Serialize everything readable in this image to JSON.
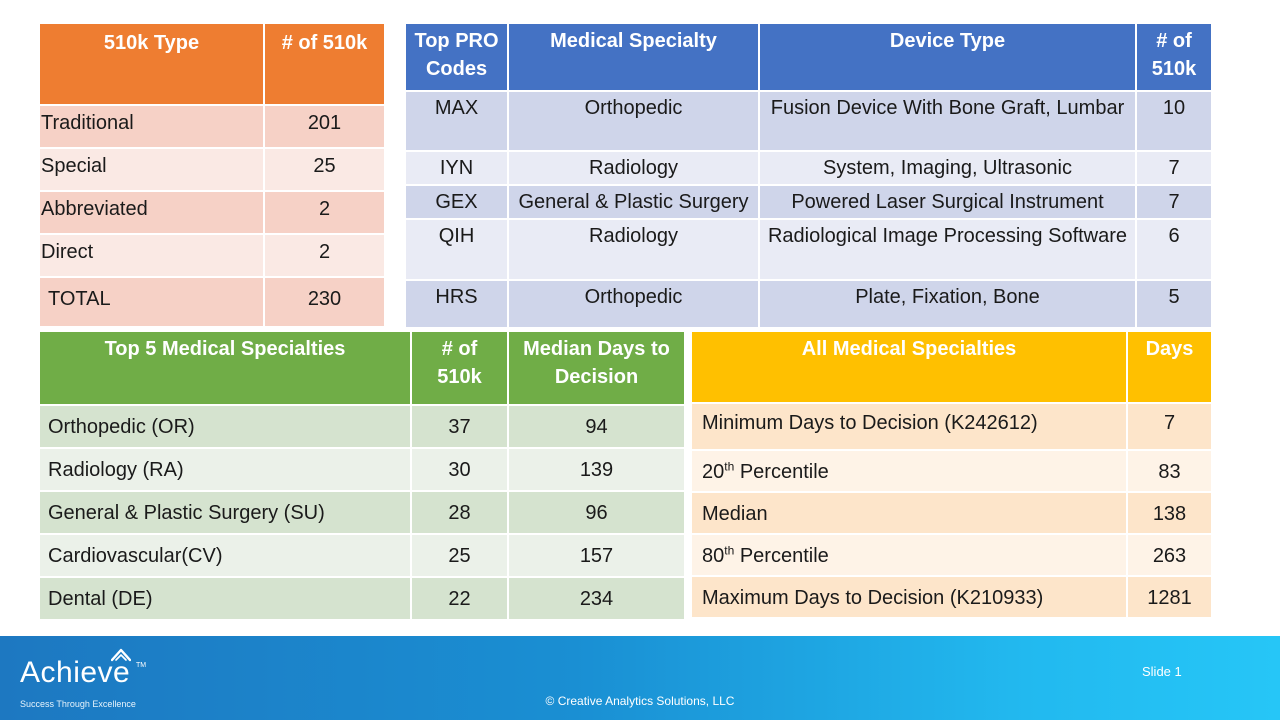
{
  "type_table": {
    "headers": [
      "510k Type",
      "# of 510k"
    ],
    "rows": [
      [
        "Traditional",
        "201"
      ],
      [
        "Special",
        "25"
      ],
      [
        "Abbreviated",
        "2"
      ],
      [
        "Direct",
        "2"
      ],
      [
        "TOTAL",
        "230"
      ]
    ]
  },
  "pro_table": {
    "headers": [
      "Top PRO Codes",
      "Medical Specialty",
      "Device Type",
      "# of 510k"
    ],
    "rows": [
      [
        "MAX",
        "Orthopedic",
        "Fusion Device With Bone Graft, Lumbar",
        "10"
      ],
      [
        "IYN",
        "Radiology",
        "System, Imaging, Ultrasonic",
        "7"
      ],
      [
        "GEX",
        "General & Plastic Surgery",
        "Powered Laser Surgical Instrument",
        "7"
      ],
      [
        "QIH",
        "Radiology",
        "Radiological Image Processing Software",
        "6"
      ],
      [
        "HRS",
        "Orthopedic",
        "Plate, Fixation, Bone",
        "5"
      ]
    ]
  },
  "specialty_table": {
    "headers": [
      "Top 5 Medical Specialties",
      "# of 510k",
      "Median Days to Decision"
    ],
    "rows": [
      [
        "Orthopedic (OR)",
        "37",
        "94"
      ],
      [
        "Radiology (RA)",
        "30",
        "139"
      ],
      [
        "General & Plastic Surgery (SU)",
        "28",
        "96"
      ],
      [
        "Cardiovascular(CV)",
        "25",
        "157"
      ],
      [
        "Dental (DE)",
        "22",
        "234"
      ]
    ]
  },
  "all_table": {
    "headers": [
      "All Medical Specialties",
      "Days"
    ],
    "rows": [
      {
        "label": "Minimum Days to Decision (K242612)",
        "sup": "",
        "label_rest": "",
        "value": "7"
      },
      {
        "label": "20",
        "sup": "th",
        "label_rest": " Percentile",
        "value": "83"
      },
      {
        "label": "Median",
        "sup": "",
        "label_rest": "",
        "value": "138"
      },
      {
        "label": "80",
        "sup": "th",
        "label_rest": " Percentile",
        "value": "263"
      },
      {
        "label": "Maximum Days to Decision (K210933)",
        "sup": "",
        "label_rest": "",
        "value": "1281"
      }
    ]
  },
  "footer": {
    "logo_word": "Achieve",
    "logo_tm": "TM",
    "tagline": "Success Through Excellence",
    "copyright": "© Creative Analytics Solutions, LLC",
    "slide": "Slide 1"
  },
  "colors": {
    "orange_header": "#ee7d31",
    "blue_header": "#4472c4",
    "green_header": "#70ad47",
    "gold_header": "#ffc000",
    "footer_start": "#1d78c1",
    "footer_end": "#26c6f7"
  }
}
